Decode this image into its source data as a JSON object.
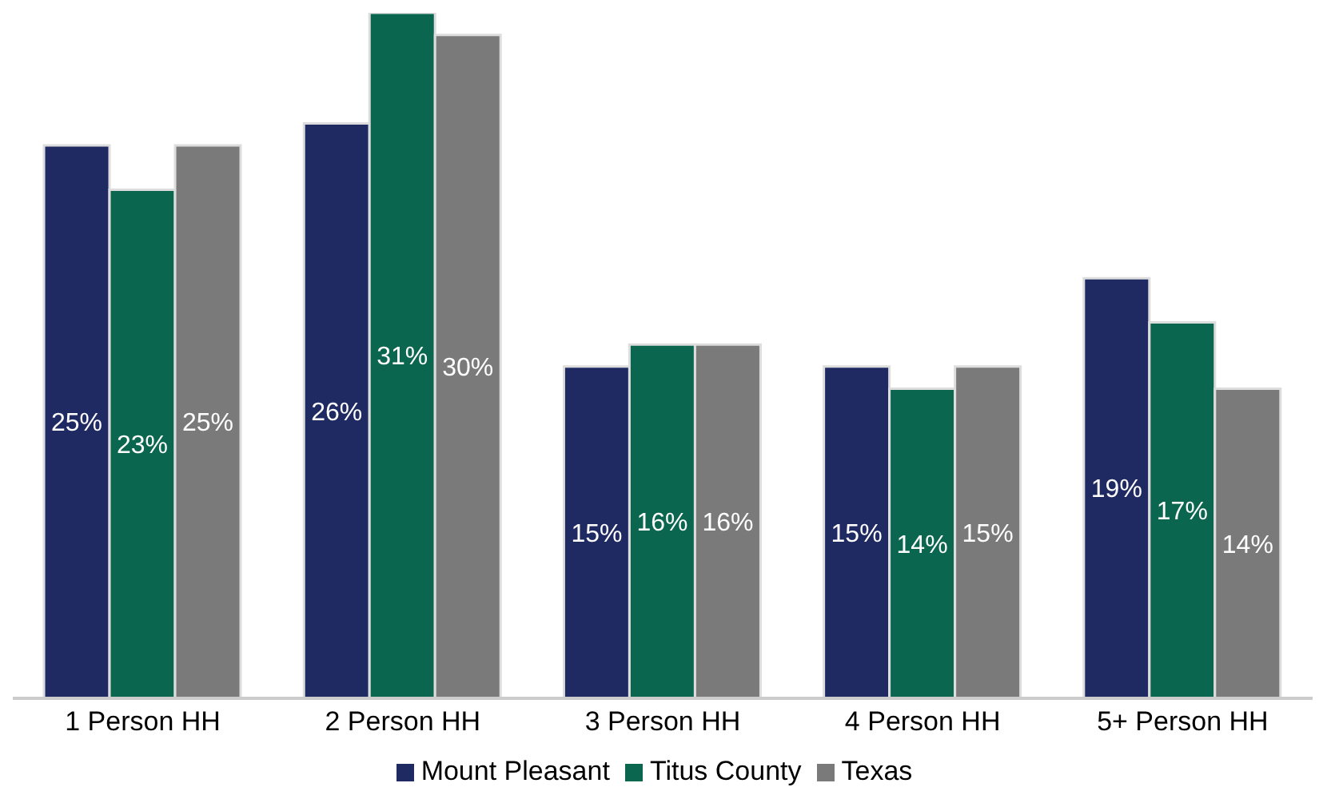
{
  "chart_data": {
    "type": "bar",
    "categories": [
      "1 Person HH",
      "2 Person HH",
      "3 Person HH",
      "4 Person HH",
      "5+ Person HH"
    ],
    "series": [
      {
        "name": "Mount Pleasant",
        "color": "#1f2a63",
        "values": [
          25,
          26,
          15,
          15,
          19
        ],
        "value_labels": [
          "25%",
          "26%",
          "15%",
          "15%",
          "19%"
        ]
      },
      {
        "name": "Titus County",
        "color": "#0b6650",
        "values": [
          23,
          31,
          16,
          14,
          17
        ],
        "value_labels": [
          "23%",
          "31%",
          "16%",
          "14%",
          "17%"
        ]
      },
      {
        "name": "Texas",
        "color": "#7a7a7a",
        "values": [
          25,
          30,
          16,
          15,
          14
        ],
        "value_labels": [
          "25%",
          "30%",
          "16%",
          "15%",
          "14%"
        ]
      }
    ],
    "legend": "bottom",
    "grid": false
  }
}
